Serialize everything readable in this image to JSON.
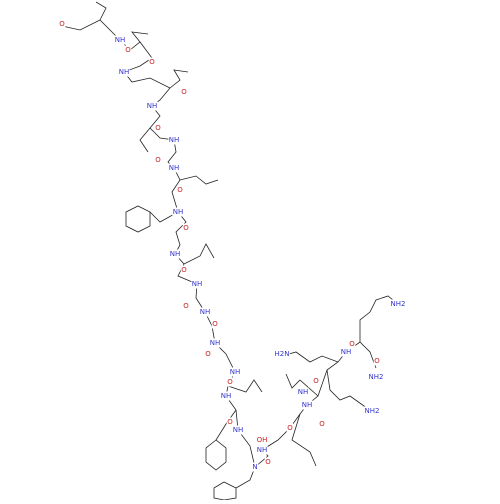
{
  "atoms": [
    "O",
    "NH",
    "O",
    "O",
    "NH",
    "O",
    "NH",
    "O",
    "NH",
    "O",
    "NH",
    "O",
    "NH",
    "O",
    "NH",
    "O",
    "NH",
    "O",
    "NH",
    "O",
    "NH",
    "O",
    "NH",
    "O",
    "NH",
    "O",
    "NH",
    "OH",
    "N",
    "O",
    "NH",
    "O",
    "NH",
    "O",
    "NH",
    "O",
    "NH",
    "O",
    "H2N",
    "NH2",
    "NH2",
    "NH2",
    "O"
  ]
}
